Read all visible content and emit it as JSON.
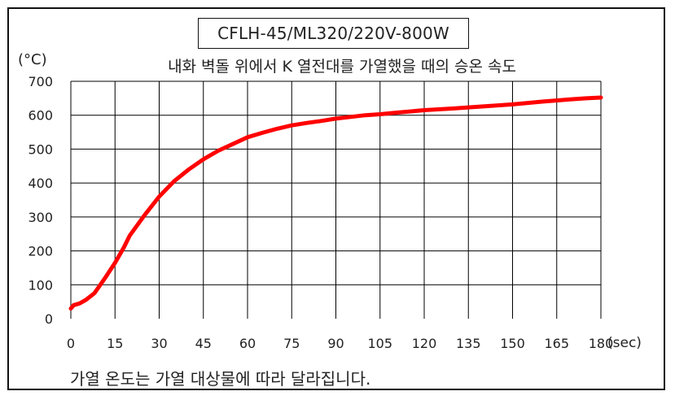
{
  "header": {
    "model": "CFLH-45/ML320/220V-800W",
    "subtitle": "내화 벽돌 위에서 K 열전대를 가열했을 때의 승온 속도"
  },
  "footnote": "가열 온도는 가열 대상물에 따라 달라집니다.",
  "colors": {
    "line": "#ff0000",
    "grid": "#000000"
  },
  "chart_data": {
    "type": "line",
    "title": "내화 벽돌 위에서 K 열전대를 가열했을 때의 승온 속도",
    "ylabel": "(°C)",
    "xlabel": "(sec)",
    "xlim": [
      0,
      180
    ],
    "ylim": [
      0,
      700
    ],
    "x_ticks": [
      "0",
      "15",
      "30",
      "45",
      "60",
      "75",
      "90",
      "105",
      "120",
      "135",
      "150",
      "165",
      "180"
    ],
    "y_ticks": [
      "0",
      "100",
      "200",
      "300",
      "400",
      "500",
      "600",
      "700"
    ],
    "grid": true,
    "series": [
      {
        "color": "#ff0000",
        "x": [
          0,
          1,
          3,
          5,
          8,
          10,
          12,
          15,
          18,
          20,
          25,
          30,
          35,
          40,
          45,
          50,
          55,
          60,
          65,
          70,
          75,
          80,
          85,
          90,
          95,
          100,
          105,
          110,
          120,
          130,
          135,
          140,
          150,
          160,
          170,
          175,
          180
        ],
        "y": [
          30,
          40,
          45,
          55,
          75,
          100,
          125,
          165,
          210,
          245,
          305,
          360,
          405,
          440,
          470,
          495,
          515,
          535,
          548,
          560,
          570,
          577,
          583,
          590,
          595,
          600,
          603,
          607,
          615,
          620,
          623,
          626,
          632,
          640,
          647,
          650,
          652
        ]
      }
    ]
  }
}
